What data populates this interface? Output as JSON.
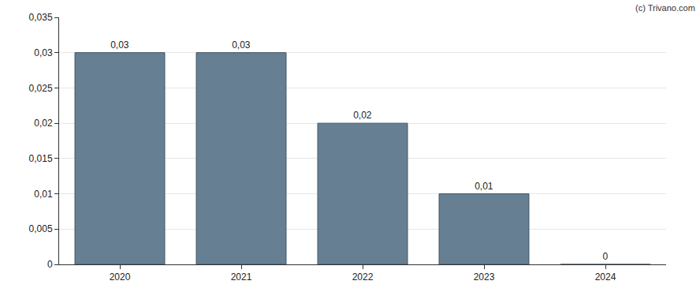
{
  "chart_data": {
    "type": "bar",
    "annotations": [
      "(c) Trivano.com"
    ],
    "categories": [
      "2020",
      "2021",
      "2022",
      "2023",
      "2024"
    ],
    "values": [
      0.03,
      0.03,
      0.02,
      0.01,
      0
    ],
    "value_labels": [
      "0,03",
      "0,03",
      "0,02",
      "0,01",
      "0"
    ],
    "data_labels": true,
    "color": "#667f93",
    "ylim": [
      0,
      0.035
    ],
    "yticks": [
      0,
      {
        "value": 0.005,
        "label": "0,005"
      },
      {
        "value": 0.01,
        "label": "0,01"
      },
      {
        "value": 0.015,
        "label": "0,015"
      },
      {
        "value": 0.02,
        "label": "0,02"
      },
      {
        "value": 0.025,
        "label": "0,025"
      },
      {
        "value": 0.03,
        "label": "0,03"
      },
      {
        "value": 0.035,
        "label": "0,035"
      }
    ],
    "grid": true
  }
}
